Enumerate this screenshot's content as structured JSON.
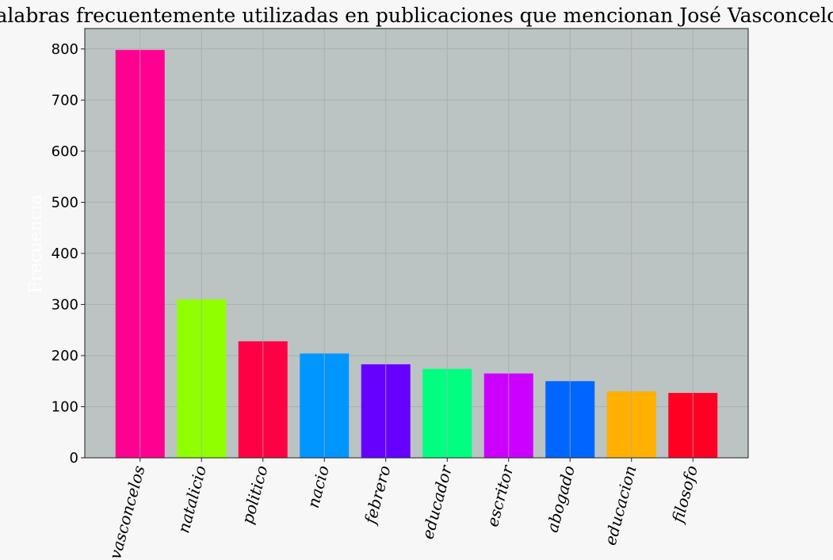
{
  "chart_data": {
    "type": "bar",
    "title": "Palabras frecuentemente utilizadas en publicaciones que mencionan José Vasconcelos",
    "xlabel": "",
    "ylabel": "Frecuencia",
    "categories": [
      "vasconcelos",
      "natalicio",
      "politico",
      "nacio",
      "febrero",
      "educador",
      "escritor",
      "abogado",
      "educacion",
      "filosofo"
    ],
    "values": [
      798,
      310,
      228,
      204,
      183,
      174,
      165,
      150,
      130,
      127
    ],
    "colors": [
      "#ff0090",
      "#90ff00",
      "#ff0044",
      "#0096ff",
      "#6600ff",
      "#00ff80",
      "#cc00ff",
      "#0066ff",
      "#ffb000",
      "#ff0022"
    ],
    "ylim": [
      0,
      840
    ],
    "yticks": [
      0,
      100,
      200,
      300,
      400,
      500,
      600,
      700,
      800
    ],
    "grid": true,
    "plot_background": "#bbc3c3",
    "page_background": "#f7f7f7"
  }
}
